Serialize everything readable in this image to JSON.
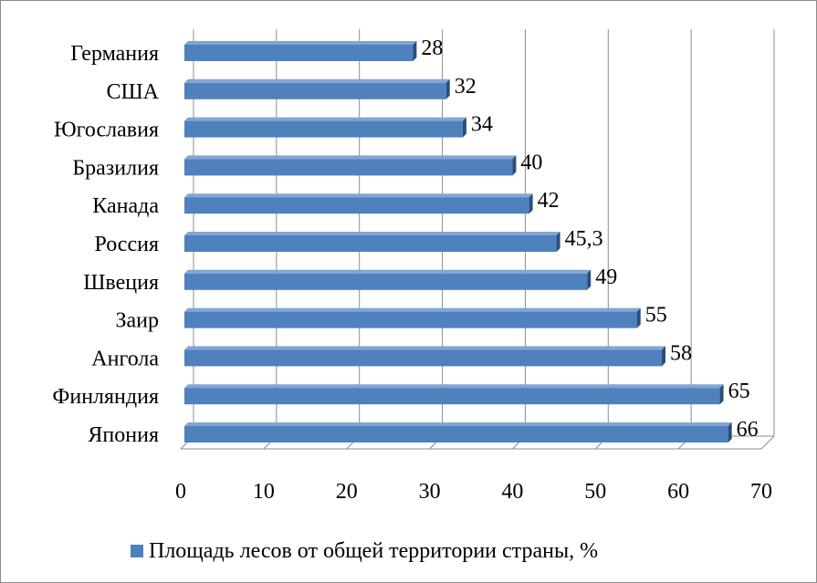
{
  "chart_data": {
    "type": "bar",
    "orientation": "horizontal",
    "style": "3d",
    "categories": [
      "Германия",
      "США",
      "Югославия",
      "Бразилия",
      "Канада",
      "Россия",
      "Швеция",
      "Заир",
      "Ангола",
      "Финляндия",
      "Япония"
    ],
    "series": [
      {
        "name": "Площадь лесов от общей территории страны, %",
        "values": [
          28,
          32,
          34,
          40,
          42,
          45.3,
          49,
          55,
          58,
          65,
          66
        ],
        "data_labels": [
          "28",
          "32",
          "34",
          "40",
          "42",
          "45,3",
          "49",
          "55",
          "58",
          "65",
          "66"
        ],
        "color": "#4f81bd"
      }
    ],
    "x_ticks": [
      "0",
      "10",
      "20",
      "30",
      "40",
      "50",
      "60",
      "70"
    ],
    "xlim": [
      0,
      70
    ],
    "grid": true,
    "legend_position": "bottom"
  }
}
